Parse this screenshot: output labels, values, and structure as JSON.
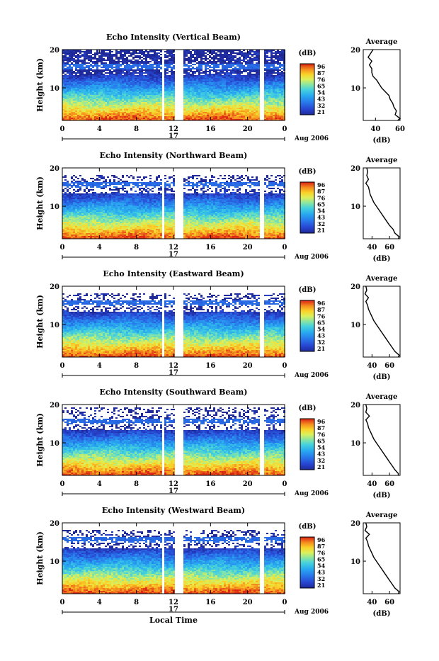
{
  "figure": {
    "common_xlabel": "Local Time",
    "date_label": "Aug 2006",
    "day_label": "17"
  },
  "chart_data": [
    {
      "type": "heatmap",
      "title": "Echo Intensity (Vertical Beam)",
      "ylabel": "Height (km)",
      "x_ticks": [
        "0",
        "4",
        "8",
        "12",
        "16",
        "20",
        "0"
      ],
      "y_ticks": [
        "10",
        "20"
      ],
      "xlim": [
        0,
        24
      ],
      "ylim": [
        1.5,
        20
      ],
      "colorbar_label": "(dB)",
      "colorbar_ticks": [
        "96",
        "87",
        "76",
        "65",
        "54",
        "43",
        "32",
        "21"
      ],
      "data_gaps_hours": [
        [
          10.6,
          11.0
        ],
        [
          12.1,
          13.0
        ],
        [
          21.3,
          21.6
        ]
      ],
      "valid_top_km": 20,
      "profile": {
        "title": "Average",
        "xlabel": "(dB)",
        "x_ticks": [
          "40",
          "60"
        ],
        "y_ticks": [
          "10",
          "20"
        ],
        "xlim": [
          30,
          60
        ],
        "heights": [
          1.5,
          2,
          3,
          4,
          5,
          6,
          7,
          8,
          9,
          10,
          11,
          12,
          13,
          14,
          15,
          16,
          17,
          18,
          19,
          20
        ],
        "values": [
          58,
          60,
          56,
          57,
          55,
          54,
          52,
          51,
          48,
          45,
          43,
          41,
          38,
          37,
          37,
          35,
          37,
          34,
          36,
          38
        ]
      }
    },
    {
      "type": "heatmap",
      "title": "Echo Intensity (Northward Beam)",
      "ylabel": "Height (km)",
      "x_ticks": [
        "0",
        "4",
        "8",
        "12",
        "16",
        "20",
        "0"
      ],
      "y_ticks": [
        "10",
        "20"
      ],
      "xlim": [
        0,
        24
      ],
      "ylim": [
        1.5,
        20
      ],
      "colorbar_label": "(dB)",
      "colorbar_ticks": [
        "96",
        "87",
        "76",
        "65",
        "54",
        "43",
        "32",
        "21"
      ],
      "data_gaps_hours": [
        [
          10.6,
          11.0
        ],
        [
          12.1,
          13.0
        ],
        [
          21.3,
          21.6
        ]
      ],
      "valid_top_km": 18.5,
      "profile": {
        "title": "Average",
        "xlabel": "(dB)",
        "x_ticks": [
          "40",
          "60"
        ],
        "y_ticks": [
          "10",
          "20"
        ],
        "xlim": [
          30,
          72
        ],
        "heights": [
          1.5,
          2,
          3,
          4,
          5,
          6,
          7,
          8,
          9,
          10,
          11,
          12,
          13,
          14,
          15,
          16,
          17,
          18,
          19,
          20
        ],
        "values": [
          70,
          71,
          66,
          64,
          60,
          57,
          54,
          51,
          48,
          45,
          42,
          40,
          38,
          37,
          36,
          33,
          36,
          34,
          35,
          34
        ]
      }
    },
    {
      "type": "heatmap",
      "title": "Echo Intensity (Eastward Beam)",
      "ylabel": "Height (km)",
      "x_ticks": [
        "0",
        "4",
        "8",
        "12",
        "16",
        "20",
        "0"
      ],
      "y_ticks": [
        "10",
        "20"
      ],
      "xlim": [
        0,
        24
      ],
      "ylim": [
        1.5,
        20
      ],
      "colorbar_label": "(dB)",
      "colorbar_ticks": [
        "96",
        "87",
        "76",
        "65",
        "54",
        "43",
        "32",
        "21"
      ],
      "data_gaps_hours": [
        [
          10.6,
          11.0
        ],
        [
          12.1,
          13.0
        ],
        [
          21.3,
          21.6
        ]
      ],
      "valid_top_km": 18.5,
      "profile": {
        "title": "Average",
        "xlabel": "(dB)",
        "x_ticks": [
          "40",
          "60"
        ],
        "y_ticks": [
          "10",
          "20"
        ],
        "xlim": [
          30,
          72
        ],
        "heights": [
          1.5,
          2,
          3,
          4,
          5,
          6,
          7,
          8,
          9,
          10,
          11,
          12,
          13,
          14,
          15,
          16,
          17,
          18,
          19,
          20
        ],
        "values": [
          70,
          71,
          66,
          63,
          60,
          57,
          54,
          51,
          48,
          45,
          42,
          40,
          38,
          36,
          35,
          33,
          36,
          32,
          34,
          33
        ]
      }
    },
    {
      "type": "heatmap",
      "title": "Echo Intensity (Southward Beam)",
      "ylabel": "Height (km)",
      "x_ticks": [
        "0",
        "4",
        "8",
        "12",
        "16",
        "20",
        "0"
      ],
      "y_ticks": [
        "10",
        "20"
      ],
      "xlim": [
        0,
        24
      ],
      "ylim": [
        1.5,
        20
      ],
      "colorbar_label": "(dB)",
      "colorbar_ticks": [
        "96",
        "87",
        "76",
        "65",
        "54",
        "43",
        "32",
        "21"
      ],
      "data_gaps_hours": [
        [
          10.6,
          11.0
        ],
        [
          12.1,
          13.0
        ],
        [
          21.3,
          21.6
        ]
      ],
      "valid_top_km": 19.5,
      "profile": {
        "title": "Average",
        "xlabel": "(dB)",
        "x_ticks": [
          "40",
          "60"
        ],
        "y_ticks": [
          "10",
          "20"
        ],
        "xlim": [
          30,
          72
        ],
        "heights": [
          1.5,
          2,
          3,
          4,
          5,
          6,
          7,
          8,
          9,
          10,
          11,
          12,
          13,
          14,
          15,
          16,
          17,
          18,
          19,
          20
        ],
        "values": [
          70,
          70,
          66,
          63,
          60,
          57,
          54,
          51,
          48,
          45,
          42,
          40,
          38,
          36,
          35,
          33,
          37,
          33,
          34,
          33
        ]
      }
    },
    {
      "type": "heatmap",
      "title": "Echo Intensity (Westward Beam)",
      "ylabel": "Height (km)",
      "x_ticks": [
        "0",
        "4",
        "8",
        "12",
        "16",
        "20",
        "0"
      ],
      "y_ticks": [
        "10",
        "20"
      ],
      "xlim": [
        0,
        24
      ],
      "ylim": [
        1.5,
        20
      ],
      "colorbar_label": "(dB)",
      "colorbar_ticks": [
        "96",
        "87",
        "76",
        "65",
        "54",
        "43",
        "32",
        "21"
      ],
      "data_gaps_hours": [
        [
          10.6,
          11.0
        ],
        [
          12.1,
          13.0
        ],
        [
          21.3,
          21.6
        ]
      ],
      "valid_top_km": 18.5,
      "profile": {
        "title": "Average",
        "xlabel": "(dB)",
        "x_ticks": [
          "40",
          "60"
        ],
        "y_ticks": [
          "10",
          "20"
        ],
        "xlim": [
          30,
          72
        ],
        "heights": [
          1.5,
          2,
          3,
          4,
          5,
          6,
          7,
          8,
          9,
          10,
          11,
          12,
          13,
          14,
          15,
          16,
          17,
          18,
          19,
          20
        ],
        "values": [
          70,
          71,
          66,
          63,
          60,
          57,
          54,
          51,
          48,
          45,
          42,
          40,
          38,
          36,
          35,
          33,
          37,
          32,
          34,
          33
        ]
      }
    }
  ]
}
